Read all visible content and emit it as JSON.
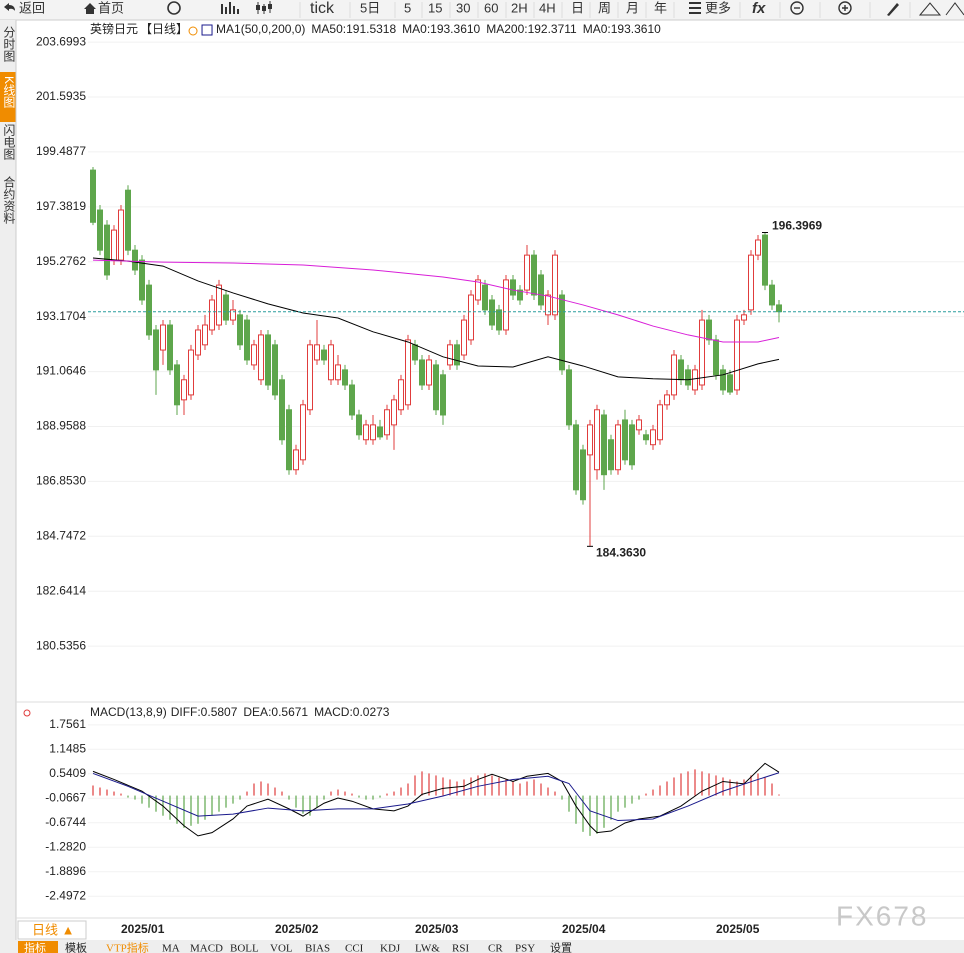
{
  "toolbar": [
    "返回",
    "首页",
    "tick",
    "5日",
    "5",
    "15",
    "30",
    "60",
    "2H",
    "4H",
    "日",
    "周",
    "月",
    "年",
    "更多"
  ],
  "side_tabs": [
    "分时图",
    "K线图",
    "闪电图",
    "合约资料"
  ],
  "bottom_tabs": [
    "指标",
    "模板",
    "VTP指标",
    "MA",
    "MACD",
    "BOLL",
    "VOL",
    "BIAS",
    "CCI",
    "KDJ",
    "LW&",
    "RSI",
    "CR",
    "PSY",
    "设置"
  ],
  "period_button": "日线 ▲",
  "watermark": "FX678",
  "chart_data": [
    {
      "type": "candlestick",
      "title": "英镑日元",
      "subtitle": "【日线】",
      "legend": [
        {
          "text": "MA1(50,0,200,0)",
          "color": "#000000"
        },
        {
          "text": "MA50:191.5318",
          "color": "#000000"
        },
        {
          "text": "MA0:193.3610",
          "color": "#1a1a8c"
        },
        {
          "text": "MA200:192.3711",
          "color": "#e020e0"
        },
        {
          "text": "MA0:193.3610",
          "color": "#f08c00"
        }
      ],
      "categories": [
        null,
        null,
        "2025/01",
        null,
        null,
        null,
        null,
        null,
        null,
        null,
        null,
        null,
        null,
        null,
        null,
        null,
        null,
        null,
        null,
        null,
        null,
        null,
        null,
        null,
        "2025/02",
        null,
        null,
        null,
        null,
        null,
        null,
        null,
        null,
        null,
        null,
        null,
        null,
        null,
        null,
        null,
        null,
        null,
        null,
        null,
        "2025/03",
        null,
        null,
        null,
        null,
        null,
        null,
        null,
        null,
        null,
        null,
        null,
        null,
        null,
        null,
        null,
        null,
        null,
        null,
        null,
        null,
        "2025/04",
        null,
        null,
        null,
        null,
        null,
        null,
        null,
        null,
        null,
        null,
        null,
        null,
        null,
        null,
        null,
        null,
        null,
        null,
        null,
        null,
        null,
        "2025/05",
        null,
        null,
        null,
        null,
        null,
        null,
        null,
        null,
        null,
        null,
        null
      ],
      "open": [
        198.79,
        197.26,
        196.68,
        195.34,
        195.34,
        198.02,
        195.72,
        195.34,
        194.38,
        192.66,
        191.89,
        192.85,
        191.32,
        189.98,
        190.17,
        191.7,
        192.09,
        192.66,
        192.85,
        194.0,
        193.04,
        193.24,
        193.04,
        191.32,
        190.75,
        192.47,
        192.09,
        190.75,
        189.6,
        187.3,
        187.68,
        189.6,
        191.51,
        191.89,
        190.75,
        190.75,
        191.13,
        190.55,
        189.4,
        188.45,
        188.45,
        188.94,
        188.64,
        189.02,
        189.6,
        189.79,
        192.09,
        191.51,
        190.55,
        191.32,
        190.94,
        191.32,
        192.09,
        191.7,
        192.28,
        193.81,
        194.38,
        193.81,
        193.43,
        192.66,
        194.58,
        194.19,
        194.19,
        195.53,
        194.77,
        193.24,
        193.24,
        194.0,
        191.13,
        189.02,
        188.06,
        187.87,
        187.3,
        189.4,
        188.45,
        187.3,
        189.21,
        189.02,
        188.83,
        188.64,
        188.26,
        188.45,
        189.79,
        190.17,
        191.51,
        191.13,
        190.36,
        190.55,
        193.04,
        192.28,
        191.13,
        190.94,
        190.36,
        193.04,
        193.43,
        195.53,
        196.3,
        194.38,
        193.62
      ],
      "high": [
        198.91,
        197.45,
        196.87,
        196.68,
        197.45,
        198.21,
        195.92,
        195.53,
        194.58,
        192.85,
        193.04,
        193.04,
        191.51,
        190.94,
        192.09,
        192.85,
        193.24,
        194.0,
        194.58,
        194.19,
        193.81,
        193.43,
        193.24,
        192.28,
        192.66,
        192.66,
        192.28,
        190.94,
        189.79,
        188.26,
        189.98,
        192.28,
        193.04,
        192.09,
        192.28,
        191.7,
        191.32,
        190.75,
        189.6,
        189.21,
        189.4,
        189.21,
        189.79,
        190.17,
        190.94,
        192.47,
        192.28,
        191.7,
        191.7,
        191.51,
        191.13,
        192.28,
        192.28,
        193.24,
        194.19,
        194.77,
        194.58,
        194.0,
        193.62,
        194.77,
        194.77,
        194.38,
        195.92,
        195.72,
        194.96,
        194.19,
        195.72,
        194.19,
        191.32,
        189.21,
        188.26,
        189.21,
        189.79,
        189.6,
        188.64,
        189.21,
        189.6,
        189.21,
        189.4,
        188.83,
        189.02,
        189.98,
        190.36,
        191.89,
        191.7,
        191.32,
        191.32,
        193.43,
        193.24,
        192.47,
        191.32,
        191.13,
        193.24,
        193.43,
        195.72,
        196.3,
        196.3969,
        194.58,
        193.81
      ],
      "low": [
        196.68,
        195.53,
        194.58,
        195.15,
        195.15,
        195.53,
        194.77,
        193.62,
        192.28,
        190.17,
        191.32,
        190.94,
        189.4,
        189.4,
        189.98,
        191.51,
        191.89,
        192.47,
        192.66,
        192.85,
        192.85,
        191.89,
        191.32,
        191.13,
        190.55,
        190.36,
        189.98,
        188.26,
        187.11,
        187.11,
        187.49,
        189.4,
        191.32,
        191.32,
        190.55,
        190.55,
        190.36,
        189.21,
        188.45,
        188.26,
        188.26,
        188.45,
        188.45,
        188.06,
        189.4,
        189.6,
        191.32,
        190.36,
        190.36,
        189.4,
        189.02,
        191.13,
        191.13,
        191.51,
        192.09,
        193.62,
        193.24,
        192.66,
        192.47,
        192.47,
        193.81,
        193.62,
        194.0,
        193.81,
        193.43,
        192.85,
        193.04,
        190.94,
        188.83,
        186.34,
        185.96,
        184.363,
        186.92,
        186.53,
        187.11,
        187.11,
        187.49,
        187.3,
        188.64,
        188.26,
        188.06,
        188.26,
        189.6,
        189.98,
        190.55,
        190.36,
        190.17,
        190.36,
        192.09,
        190.75,
        190.17,
        190.17,
        190.17,
        192.85,
        193.24,
        195.34,
        194.19,
        193.43,
        192.95
      ],
      "close": [
        196.79,
        195.72,
        194.77,
        196.49,
        197.26,
        195.72,
        194.96,
        193.81,
        192.47,
        191.13,
        192.85,
        191.13,
        189.79,
        190.75,
        191.89,
        192.66,
        192.85,
        193.81,
        194.38,
        193.04,
        193.43,
        192.09,
        191.51,
        192.09,
        192.47,
        190.55,
        190.17,
        188.45,
        187.3,
        188.06,
        189.79,
        192.09,
        192.09,
        191.51,
        192.09,
        191.32,
        190.55,
        189.4,
        188.64,
        189.02,
        189.02,
        188.56,
        189.6,
        189.98,
        190.75,
        192.28,
        191.51,
        190.55,
        191.51,
        189.6,
        189.4,
        192.09,
        191.32,
        193.04,
        194.0,
        194.58,
        193.43,
        192.85,
        192.66,
        194.58,
        194.0,
        193.81,
        195.53,
        194.0,
        193.62,
        194.0,
        195.53,
        191.13,
        189.02,
        186.53,
        186.15,
        189.02,
        189.6,
        187.11,
        187.3,
        189.02,
        187.68,
        187.49,
        189.21,
        188.45,
        188.83,
        189.79,
        190.17,
        191.7,
        190.75,
        190.55,
        191.13,
        193.04,
        192.28,
        190.94,
        190.36,
        190.28,
        193.04,
        193.24,
        195.53,
        196.11,
        194.38,
        193.62,
        193.361
      ],
      "up_color": "#e03c3c",
      "down_color": "#5ea64c",
      "up_hollow": true,
      "lines": [
        {
          "color": "#000000",
          "x": [
            0,
            5,
            10,
            15,
            20,
            25,
            30,
            35,
            40,
            45,
            50,
            55,
            60,
            65,
            70,
            75,
            80,
            85,
            90,
            95,
            98
          ],
          "values": [
            195.42,
            195.3,
            195.11,
            194.54,
            194.08,
            193.66,
            193.31,
            193.12,
            192.59,
            192.2,
            191.63,
            191.28,
            191.24,
            191.63,
            191.28,
            190.86,
            190.79,
            190.75,
            190.94,
            191.36,
            191.5318
          ]
        },
        {
          "color": "#d81ed8",
          "x": [
            0,
            10,
            20,
            30,
            40,
            50,
            55,
            60,
            65,
            70,
            75,
            80,
            85,
            90,
            95,
            98
          ],
          "values": [
            195.34,
            195.26,
            195.23,
            195.15,
            194.96,
            194.69,
            194.5,
            194.19,
            193.96,
            193.62,
            193.24,
            192.81,
            192.47,
            192.2,
            192.2,
            192.3711
          ]
        }
      ],
      "last_price": 193.361,
      "last_price_color": "#2a9d9d",
      "high_label": 196.3969,
      "low_label": {
        "value": 184.363,
        "label": "184.3630"
      },
      "ylim": [
        178.47,
        204.47
      ],
      "yticks": [
        203.6993,
        201.5935,
        199.4877,
        197.3819,
        195.2762,
        193.1704,
        191.0646,
        188.9588,
        {
          "value": 186.853,
          "label": "186.8530"
        },
        184.7472,
        182.6414,
        180.5356
      ],
      "grid": true
    },
    {
      "type": "macd",
      "title": "MACD(13,8,9)",
      "legend": [
        {
          "text": "DIFF:0.5807",
          "color": "#000000"
        },
        {
          "text": "DEA:0.5671",
          "color": "#1a1a8c"
        },
        {
          "text": "MACD:0.0273",
          "color": "#e020e0"
        }
      ],
      "lines": [
        {
          "color": "#000000",
          "x": [
            0,
            3,
            7,
            10,
            13,
            15,
            17,
            20,
            22,
            25,
            28,
            30,
            33,
            35,
            37,
            40,
            43,
            45,
            47,
            50,
            53,
            55,
            57,
            60,
            62,
            65,
            67,
            69,
            71,
            72,
            74,
            76,
            78,
            81,
            84,
            87,
            90,
            93,
            96,
            98
          ],
          "values": [
            0.6,
            0.4,
            0.11,
            -0.26,
            -0.75,
            -1.0,
            -0.92,
            -0.58,
            -0.26,
            -0.09,
            -0.33,
            -0.51,
            -0.19,
            -0.06,
            -0.14,
            -0.33,
            -0.38,
            -0.26,
            0.03,
            0.18,
            0.23,
            0.4,
            0.53,
            0.35,
            0.48,
            0.55,
            0.35,
            -0.26,
            -0.75,
            -0.92,
            -0.88,
            -0.68,
            -0.58,
            -0.51,
            -0.26,
            0.11,
            0.35,
            0.29,
            0.8,
            0.5807
          ]
        },
        {
          "color": "#1a1a8c",
          "x": [
            0,
            5,
            10,
            15,
            20,
            25,
            30,
            35,
            40,
            45,
            50,
            55,
            60,
            65,
            68,
            71,
            75,
            80,
            85,
            90,
            95,
            98
          ],
          "values": [
            0.55,
            0.23,
            -0.14,
            -0.51,
            -0.46,
            -0.31,
            -0.38,
            -0.33,
            -0.33,
            -0.21,
            -0.01,
            0.23,
            0.4,
            0.48,
            0.3,
            -0.38,
            -0.62,
            -0.58,
            -0.26,
            0.11,
            0.4,
            0.5671
          ]
        }
      ],
      "histogram": [
        0.25,
        0.2,
        0.15,
        0.1,
        0.05,
        -0.05,
        -0.1,
        -0.2,
        -0.3,
        -0.4,
        -0.5,
        -0.6,
        -0.7,
        -0.8,
        -0.75,
        -0.7,
        -0.6,
        -0.5,
        -0.4,
        -0.3,
        -0.2,
        -0.1,
        0.1,
        0.3,
        0.35,
        0.3,
        0.2,
        0.1,
        -0.1,
        -0.3,
        -0.45,
        -0.5,
        -0.3,
        -0.1,
        0.1,
        0.15,
        0.1,
        0.05,
        -0.05,
        -0.1,
        -0.1,
        -0.05,
        0.05,
        0.1,
        0.2,
        0.3,
        0.5,
        0.6,
        0.55,
        0.5,
        0.45,
        0.4,
        0.35,
        0.4,
        0.45,
        0.5,
        0.55,
        0.5,
        0.45,
        0.4,
        0.35,
        0.3,
        0.35,
        0.4,
        0.3,
        0.2,
        0.1,
        -0.1,
        -0.4,
        -0.7,
        -0.9,
        -1.0,
        -0.95,
        -0.8,
        -0.6,
        -0.4,
        -0.3,
        -0.2,
        -0.1,
        0.05,
        0.15,
        0.25,
        0.35,
        0.45,
        0.55,
        0.6,
        0.65,
        0.6,
        0.55,
        0.5,
        0.45,
        0.4,
        0.35,
        0.4,
        0.5,
        0.55,
        0.45,
        0.3,
        0.0273
      ],
      "up_color": "#e03c3c",
      "down_color": "#5ea64c",
      "ylim": [
        -2.964,
        2.248
      ],
      "yticks": [
        1.7561,
        1.1485,
        0.5409,
        -0.0667,
        -0.6744,
        {
          "value": -1.282,
          "label": "-1.2820"
        },
        -1.8896,
        -2.4972
      ],
      "grid": true
    }
  ]
}
